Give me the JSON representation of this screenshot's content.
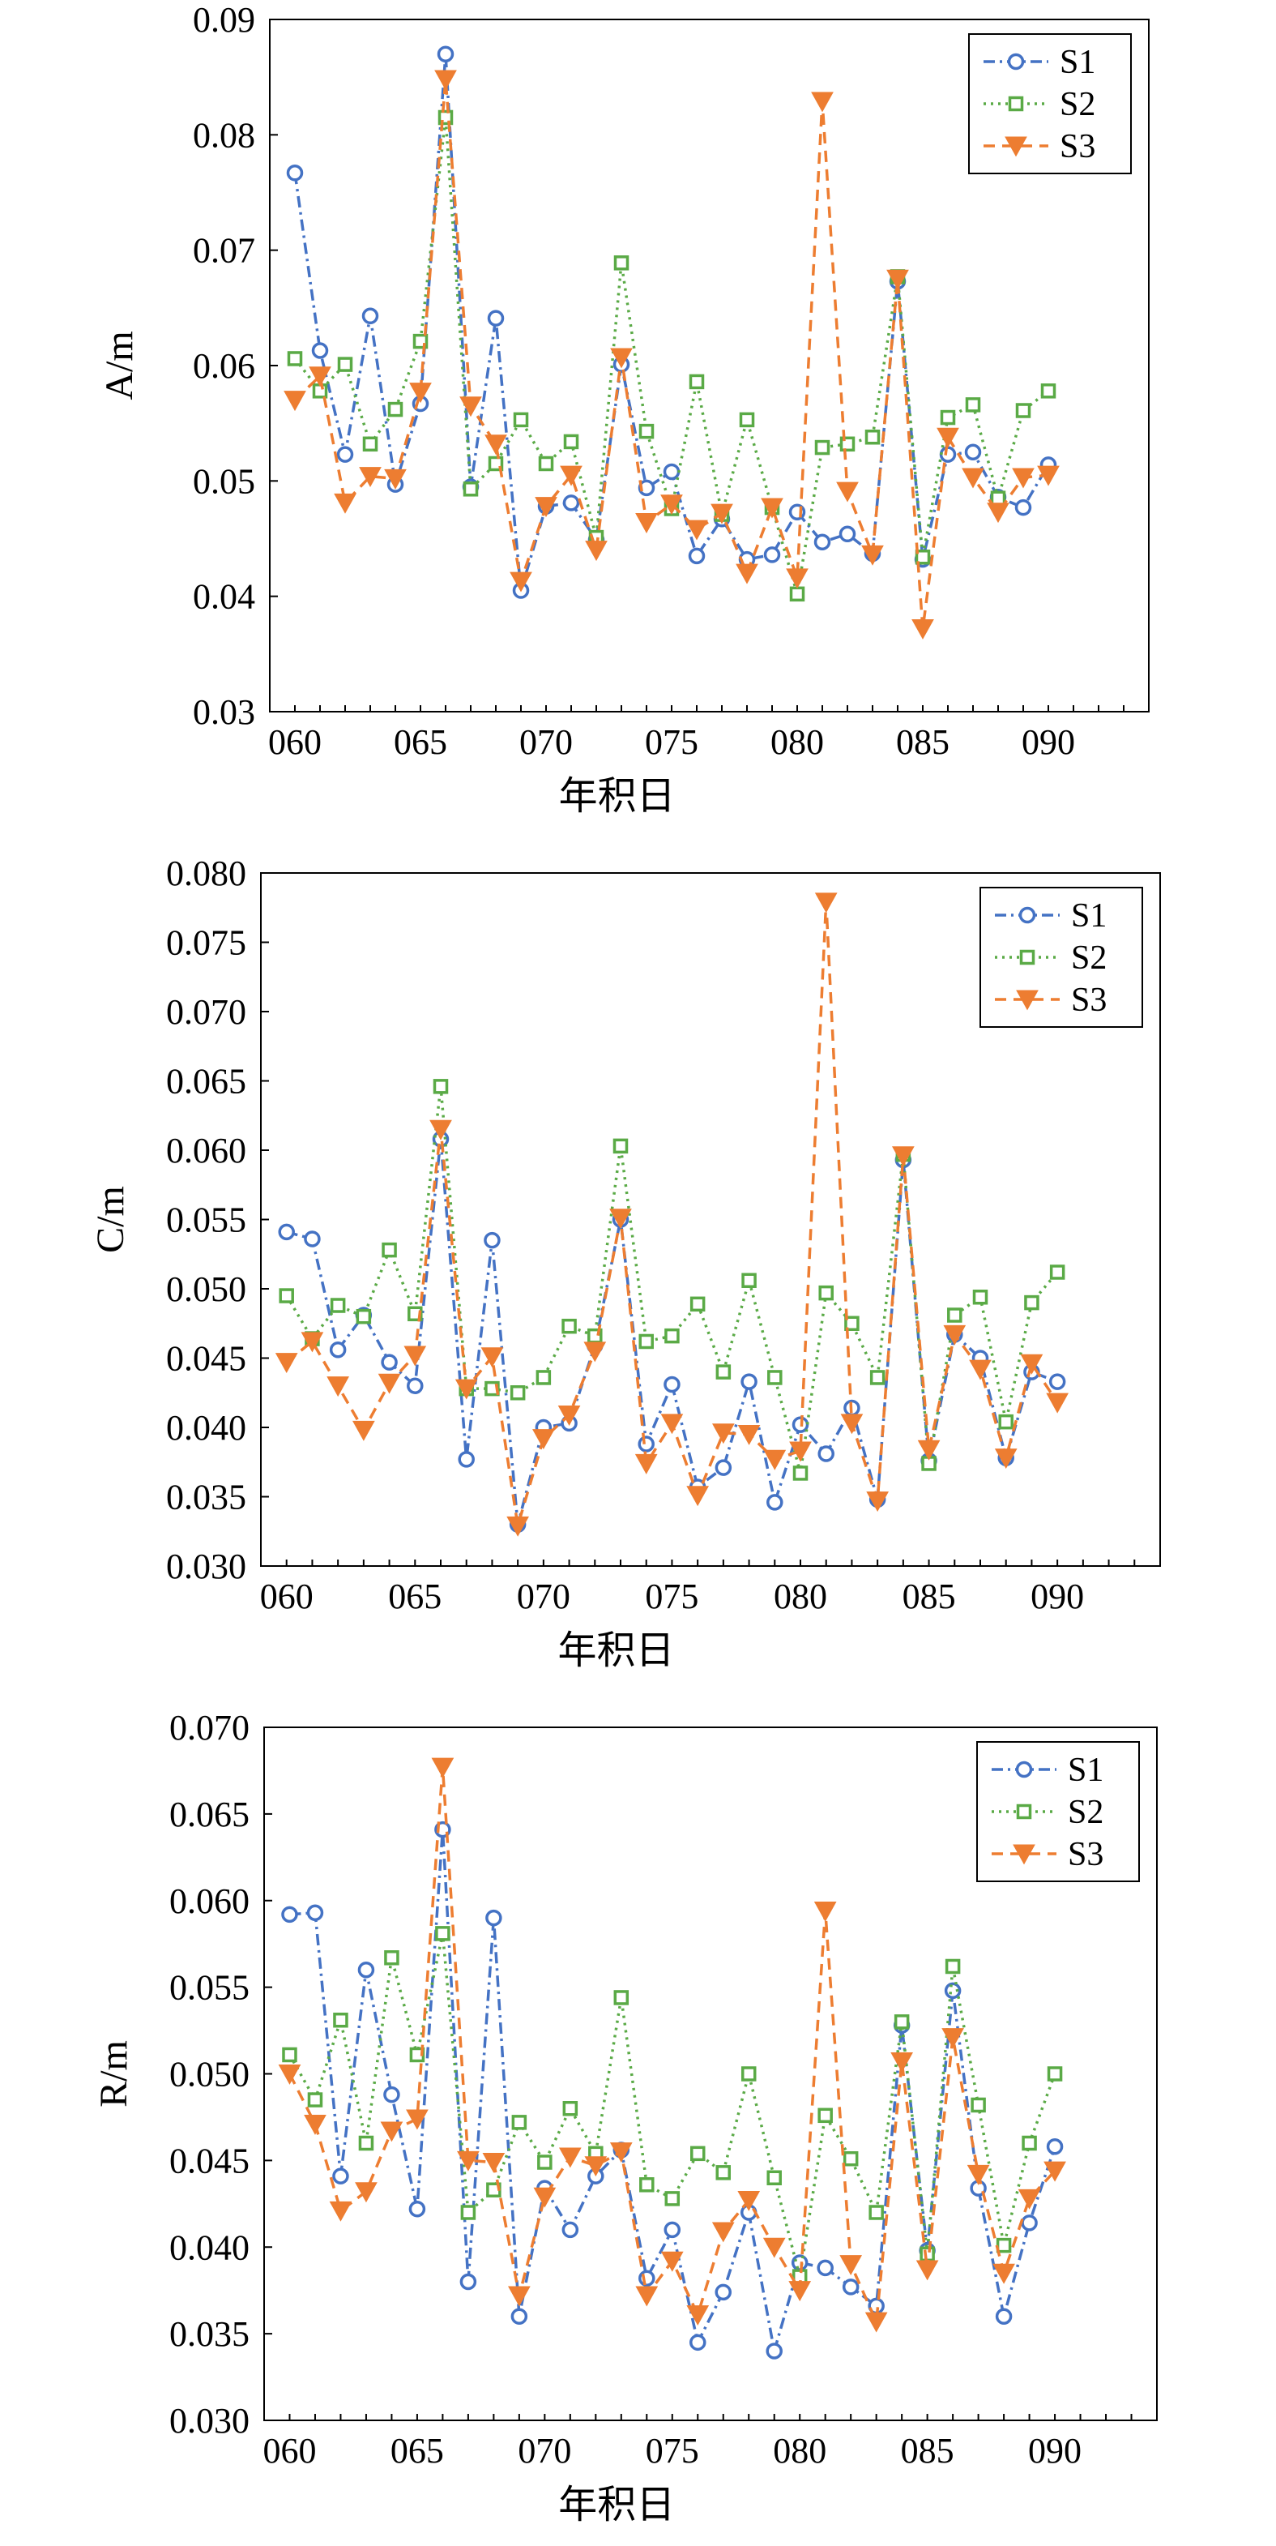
{
  "colors": {
    "S1": "#4472c4",
    "S2": "#5aaa46",
    "S3": "#ed7d31"
  },
  "chart_data": [
    {
      "id": "chart-a",
      "type": "line",
      "title": "",
      "xlabel": "年积日",
      "ylabel": "A/m",
      "xlim": [
        59,
        94
      ],
      "ylim": [
        0.03,
        0.09
      ],
      "yticks": [
        "0.03",
        "0.04",
        "0.05",
        "0.06",
        "0.07",
        "0.08",
        "0.09"
      ],
      "xticks": [
        "060",
        "065",
        "070",
        "075",
        "080",
        "085",
        "090"
      ],
      "grid": false,
      "legend_position": "top-right",
      "x": [
        60,
        61,
        62,
        63,
        64,
        65,
        66,
        67,
        68,
        69,
        70,
        71,
        72,
        73,
        74,
        75,
        76,
        77,
        78,
        79,
        80,
        81,
        82,
        83,
        84,
        85,
        86,
        87,
        88,
        89,
        90
      ],
      "series": [
        {
          "name": "S1",
          "marker": "circle",
          "line": "dashdot",
          "values": [
            0.0767,
            0.0613,
            0.0523,
            0.0643,
            0.0497,
            0.0567,
            0.087,
            0.0495,
            0.0641,
            0.0405,
            0.0478,
            0.0481,
            0.0449,
            0.0601,
            0.0494,
            0.0508,
            0.0435,
            0.0467,
            0.0432,
            0.0436,
            0.0473,
            0.0447,
            0.0454,
            0.0437,
            0.0673,
            0.0432,
            0.0523,
            0.0525,
            0.0486,
            0.0477,
            0.0514
          ]
        },
        {
          "name": "S2",
          "marker": "square",
          "line": "dotted",
          "values": [
            0.0606,
            0.0578,
            0.0601,
            0.0532,
            0.0562,
            0.0621,
            0.0815,
            0.0493,
            0.0515,
            0.0553,
            0.0515,
            0.0534,
            0.0451,
            0.0689,
            0.0543,
            0.0476,
            0.0586,
            0.0471,
            0.0553,
            0.0477,
            0.0402,
            0.0529,
            0.0532,
            0.0538,
            0.0677,
            0.0434,
            0.0555,
            0.0566,
            0.0485,
            0.0561,
            0.0578
          ]
        },
        {
          "name": "S3",
          "marker": "triangle-down",
          "line": "dashed",
          "values": [
            0.057,
            0.0591,
            0.0481,
            0.0504,
            0.0502,
            0.0577,
            0.0848,
            0.0565,
            0.0532,
            0.0413,
            0.0478,
            0.0505,
            0.044,
            0.0607,
            0.0464,
            0.048,
            0.0458,
            0.0472,
            0.042,
            0.0477,
            0.0416,
            0.0829,
            0.0491,
            0.0436,
            0.0675,
            0.0372,
            0.0538,
            0.0503,
            0.0473,
            0.0503,
            0.0505
          ]
        }
      ]
    },
    {
      "id": "chart-c",
      "type": "line",
      "title": "",
      "xlabel": "年积日",
      "ylabel": "C/m",
      "xlim": [
        59,
        94
      ],
      "ylim": [
        0.03,
        0.08
      ],
      "yticks": [
        "0.030",
        "0.035",
        "0.040",
        "0.045",
        "0.050",
        "0.055",
        "0.060",
        "0.065",
        "0.070",
        "0.075",
        "0.080"
      ],
      "xticks": [
        "060",
        "065",
        "070",
        "075",
        "080",
        "085",
        "090"
      ],
      "grid": false,
      "legend_position": "top-right",
      "x": [
        60,
        61,
        62,
        63,
        64,
        65,
        66,
        67,
        68,
        69,
        70,
        71,
        72,
        73,
        74,
        75,
        76,
        77,
        78,
        79,
        80,
        81,
        82,
        83,
        84,
        85,
        86,
        87,
        88,
        89,
        90
      ],
      "series": [
        {
          "name": "S1",
          "marker": "circle",
          "line": "dashdot",
          "values": [
            0.0541,
            0.0536,
            0.0456,
            0.0481,
            0.0447,
            0.043,
            0.0608,
            0.0377,
            0.0535,
            0.033,
            0.04,
            0.0403,
            0.0459,
            0.055,
            0.0388,
            0.0431,
            0.0357,
            0.0371,
            0.0433,
            0.0346,
            0.0402,
            0.0381,
            0.0414,
            0.0348,
            0.0593,
            0.0376,
            0.0467,
            0.045,
            0.0378,
            0.044,
            0.0433
          ]
        },
        {
          "name": "S2",
          "marker": "square",
          "line": "dotted",
          "values": [
            0.0495,
            0.0464,
            0.0488,
            0.048,
            0.0528,
            0.0482,
            0.0646,
            0.0428,
            0.0428,
            0.0425,
            0.0436,
            0.0473,
            0.0466,
            0.0603,
            0.0462,
            0.0466,
            0.0489,
            0.044,
            0.0506,
            0.0436,
            0.0367,
            0.0497,
            0.0475,
            0.0436,
            0.0597,
            0.0374,
            0.0481,
            0.0494,
            0.0404,
            0.049,
            0.0512
          ]
        },
        {
          "name": "S3",
          "marker": "triangle-down",
          "line": "dashed",
          "values": [
            0.0447,
            0.0462,
            0.043,
            0.0398,
            0.0432,
            0.0452,
            0.0615,
            0.0428,
            0.0451,
            0.0329,
            0.0392,
            0.0409,
            0.0455,
            0.0551,
            0.0374,
            0.0403,
            0.0351,
            0.0396,
            0.0395,
            0.0377,
            0.0383,
            0.0779,
            0.0403,
            0.0347,
            0.0596,
            0.0384,
            0.0467,
            0.0442,
            0.0378,
            0.0446,
            0.0418
          ]
        }
      ]
    },
    {
      "id": "chart-r",
      "type": "line",
      "title": "",
      "xlabel": "年积日",
      "ylabel": "R/m",
      "xlim": [
        59,
        94
      ],
      "ylim": [
        0.03,
        0.07
      ],
      "yticks": [
        "0.030",
        "0.035",
        "0.040",
        "0.045",
        "0.050",
        "0.055",
        "0.060",
        "0.065",
        "0.070"
      ],
      "xticks": [
        "060",
        "065",
        "070",
        "075",
        "080",
        "085",
        "090"
      ],
      "grid": false,
      "legend_position": "top-right",
      "x": [
        60,
        61,
        62,
        63,
        64,
        65,
        66,
        67,
        68,
        69,
        70,
        71,
        72,
        73,
        74,
        75,
        76,
        77,
        78,
        79,
        80,
        81,
        82,
        83,
        84,
        85,
        86,
        87,
        88,
        89,
        90
      ],
      "series": [
        {
          "name": "S1",
          "marker": "circle",
          "line": "dashdot",
          "values": [
            0.0592,
            0.0593,
            0.0441,
            0.056,
            0.0488,
            0.0422,
            0.0641,
            0.038,
            0.059,
            0.036,
            0.0434,
            0.041,
            0.0441,
            0.0456,
            0.0382,
            0.041,
            0.0345,
            0.0374,
            0.042,
            0.034,
            0.0391,
            0.0388,
            0.0377,
            0.0366,
            0.0528,
            0.0398,
            0.0548,
            0.0434,
            0.036,
            0.0414,
            0.0458
          ]
        },
        {
          "name": "S2",
          "marker": "square",
          "line": "dotted",
          "values": [
            0.0511,
            0.0485,
            0.0531,
            0.046,
            0.0567,
            0.0511,
            0.0581,
            0.042,
            0.0433,
            0.0472,
            0.0449,
            0.048,
            0.0454,
            0.0544,
            0.0436,
            0.0428,
            0.0454,
            0.0443,
            0.05,
            0.044,
            0.0383,
            0.0476,
            0.0451,
            0.042,
            0.053,
            0.0396,
            0.0562,
            0.0482,
            0.0401,
            0.046,
            0.05
          ]
        },
        {
          "name": "S3",
          "marker": "triangle-down",
          "line": "dashed",
          "values": [
            0.05,
            0.0471,
            0.0421,
            0.0432,
            0.0467,
            0.0474,
            0.0677,
            0.045,
            0.0449,
            0.0372,
            0.0429,
            0.0452,
            0.0447,
            0.0455,
            0.0372,
            0.0392,
            0.0361,
            0.0409,
            0.0427,
            0.04,
            0.0375,
            0.0594,
            0.039,
            0.0357,
            0.0507,
            0.0387,
            0.0521,
            0.0442,
            0.0385,
            0.0428,
            0.0444
          ]
        }
      ]
    }
  ]
}
